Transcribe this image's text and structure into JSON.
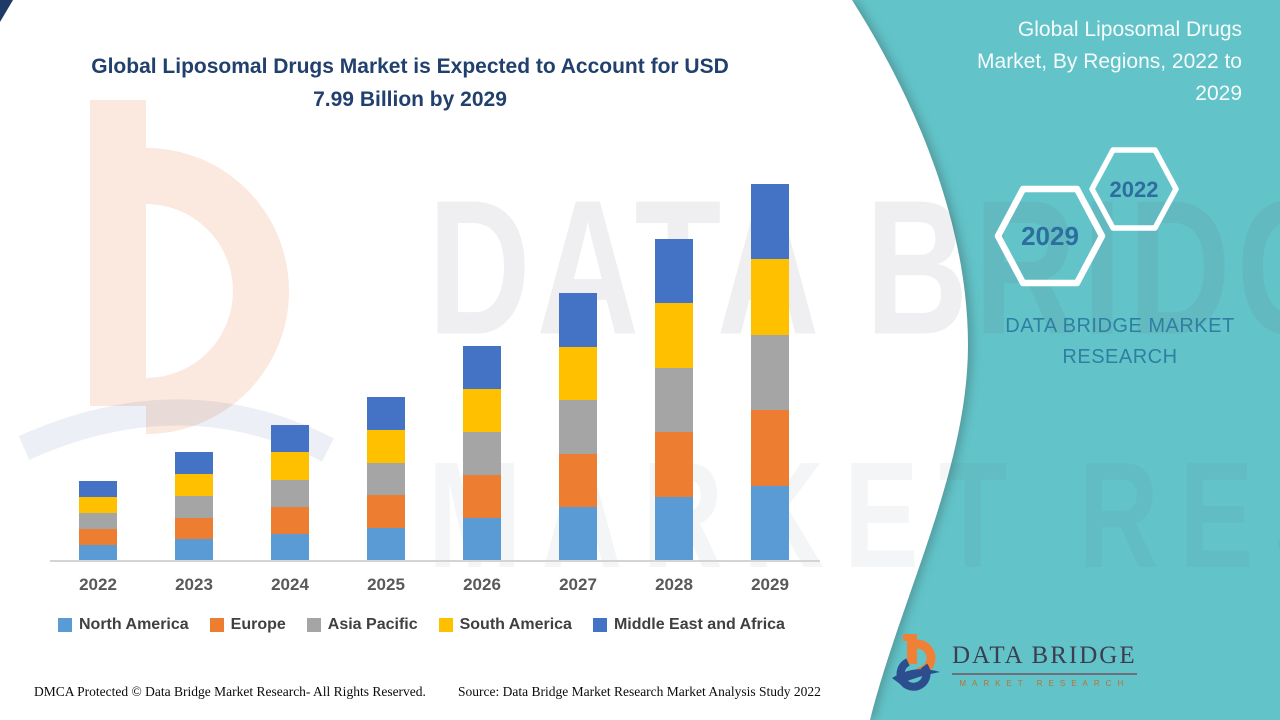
{
  "page": {
    "title_line1": "Global Liposomal Drugs Market is Expected to Account for USD",
    "title_line2": "7.99 Billion by 2029"
  },
  "side_panel": {
    "heading_lines": [
      "Global Liposomal Drugs",
      "Market, By Regions, 2022 to",
      "2029"
    ],
    "hexagons": [
      {
        "label": "2022"
      },
      {
        "label": "2029"
      }
    ],
    "brand_line1": "DATA BRIDGE MARKET",
    "brand_line2": "RESEARCH"
  },
  "logo": {
    "name": "DATA BRIDGE",
    "sub": "MARKET RESEARCH"
  },
  "footer": {
    "dmca": "DMCA Protected © Data Bridge Market Research- All Rights Reserved.",
    "source": "Source: Data Bridge Market Research Market Analysis Study 2022"
  },
  "watermark": {
    "row1": "DATA BRIDGE",
    "row2": "MARKET RESEARCH"
  },
  "colors": {
    "teal_background": "#62C4C9",
    "title_blue": "#21406E",
    "corner_wedge_navy": "#1E3A66"
  },
  "chart_data": {
    "type": "bar",
    "stacked": true,
    "title": "Global Liposomal Drugs Market is Expected to Account for USD 7.99 Billion by 2029",
    "xlabel": "",
    "ylabel": "",
    "value_unit": "USD Billion",
    "ylim": [
      0,
      8
    ],
    "grid": false,
    "legend_position": "bottom",
    "categories": [
      "2022",
      "2023",
      "2024",
      "2025",
      "2026",
      "2027",
      "2028",
      "2029"
    ],
    "series": [
      {
        "name": "North America",
        "color": "#5B9BD5",
        "values": [
          0.34,
          0.46,
          0.575,
          0.695,
          0.91,
          1.135,
          1.365,
          1.598
        ]
      },
      {
        "name": "Europe",
        "color": "#ED7D31",
        "values": [
          0.34,
          0.46,
          0.575,
          0.695,
          0.91,
          1.135,
          1.365,
          1.598
        ]
      },
      {
        "name": "Asia Pacific",
        "color": "#A5A5A5",
        "values": [
          0.34,
          0.46,
          0.575,
          0.695,
          0.91,
          1.135,
          1.365,
          1.598
        ]
      },
      {
        "name": "South America",
        "color": "#FFC000",
        "values": [
          0.34,
          0.46,
          0.575,
          0.695,
          0.91,
          1.135,
          1.365,
          1.598
        ]
      },
      {
        "name": "Middle East and Africa",
        "color": "#4472C4",
        "values": [
          0.34,
          0.46,
          0.575,
          0.695,
          0.91,
          1.135,
          1.365,
          1.598
        ]
      }
    ],
    "stack_totals": [
      1.7,
      2.3,
      2.875,
      3.475,
      4.55,
      5.675,
      6.825,
      7.99
    ]
  }
}
